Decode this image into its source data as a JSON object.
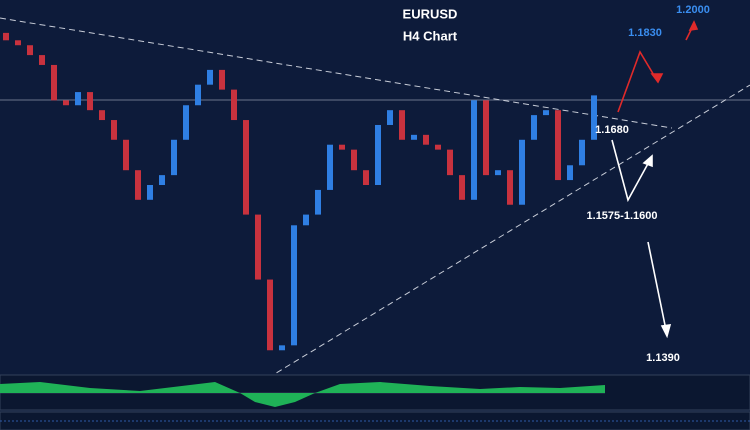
{
  "chart_data": {
    "type": "candlestick",
    "title": "EURUSD",
    "subtitle": "H4 Chart",
    "ylim": [
      1.135,
      1.18
    ],
    "up_color": "#2f7fe3",
    "down_color": "#c8323e",
    "open": [
      1.176,
      1.1751,
      1.1745,
      1.1733,
      1.1721,
      1.1678,
      1.1672,
      1.1688,
      1.1666,
      1.1654,
      1.163,
      1.1593,
      1.1557,
      1.1575,
      1.1587,
      1.163,
      1.1672,
      1.1697,
      1.1715,
      1.1691,
      1.1654,
      1.1539,
      1.146,
      1.1374,
      1.138,
      1.1526,
      1.1539,
      1.1569,
      1.1624,
      1.1618,
      1.1593,
      1.1575,
      1.1648,
      1.1666,
      1.163,
      1.1636,
      1.1624,
      1.1618,
      1.1587,
      1.1557,
      1.1678,
      1.1587,
      1.1593,
      1.1551,
      1.163,
      1.166,
      1.1666,
      1.1581,
      1.1599,
      1.163
    ],
    "close": [
      1.1751,
      1.1745,
      1.1733,
      1.1721,
      1.1678,
      1.1672,
      1.1688,
      1.1666,
      1.1654,
      1.163,
      1.1593,
      1.1557,
      1.1575,
      1.1587,
      1.163,
      1.1672,
      1.1697,
      1.1715,
      1.1691,
      1.1654,
      1.1539,
      1.146,
      1.1374,
      1.138,
      1.1526,
      1.1539,
      1.1569,
      1.1624,
      1.1618,
      1.1593,
      1.1575,
      1.1648,
      1.1666,
      1.163,
      1.1636,
      1.1624,
      1.1618,
      1.1587,
      1.1557,
      1.1678,
      1.1587,
      1.1593,
      1.1551,
      1.163,
      1.166,
      1.1666,
      1.1581,
      1.1599,
      1.163,
      1.1684
    ],
    "annotations": [
      {
        "text": "1.2000",
        "color": "#3a8ef0"
      },
      {
        "text": "1.1830",
        "color": "#3a8ef0"
      },
      {
        "text": "1.1680",
        "color": "#ffffff"
      },
      {
        "text": "1.1575-1.1600",
        "color": "#ffffff"
      },
      {
        "text": "1.1390",
        "color": "#ffffff"
      }
    ]
  }
}
